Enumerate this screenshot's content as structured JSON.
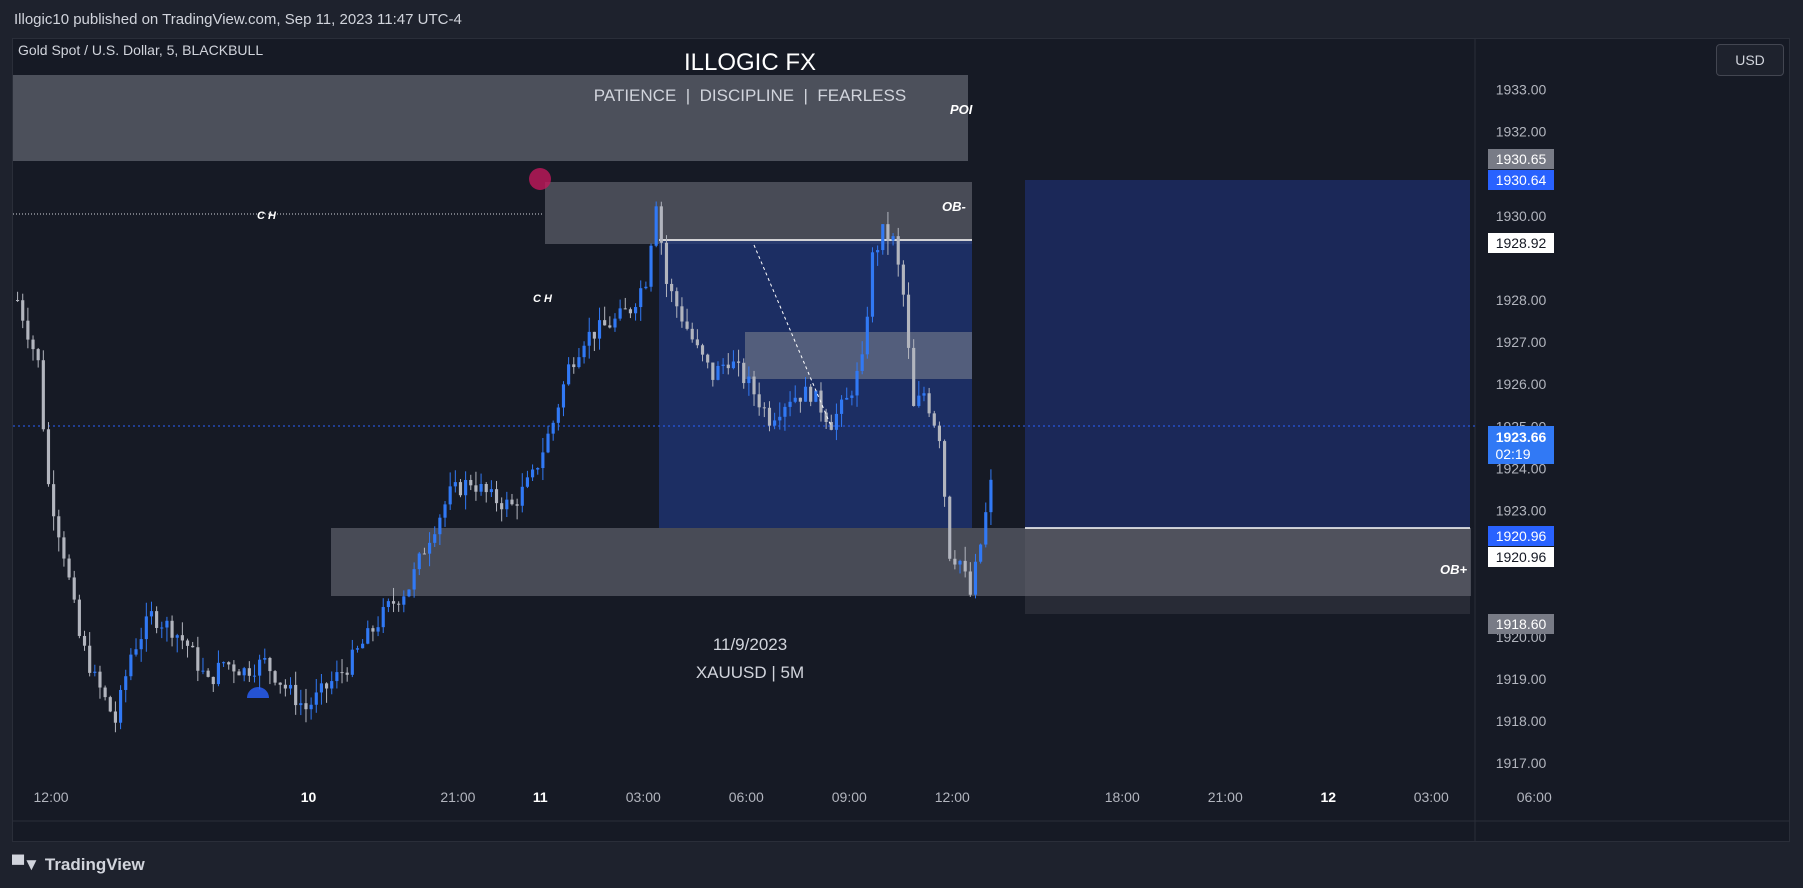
{
  "header": {
    "publish_line": "Illogic10 published on TradingView.com, Sep 11, 2023 11:47 UTC-4"
  },
  "footer": {
    "brand": "TradingView",
    "brand_icon": "tradingview-logo-icon"
  },
  "chart": {
    "symbol_line": "Gold Spot / U.S. Dollar, 5, BLACKBULL",
    "currency_button": "USD",
    "overlay_title": "ILLOGIC FX",
    "overlay_subtitle": "PATIENCE  |  DISCIPLINE  |  FEARLESS",
    "overlay_date": "11/9/2023",
    "overlay_pair": "XAUUSD | 5M",
    "labels": {
      "poi": "POI",
      "ob_minus": "OB-",
      "ob_plus": "OB+",
      "ch1": "C H",
      "ch2": "C H"
    },
    "price_badges": {
      "p1930_65": "1930.65",
      "p1930_64": "1930.64",
      "p1928_92": "1928.92",
      "p1923_66": "1923.66",
      "countdown": "02:19",
      "p1920_96_blue": "1920.96",
      "p1920_96_white": "1920.96",
      "p1918_60": "1918.60"
    },
    "colors": {
      "background": "#161a25",
      "up": "#3179f5",
      "down": "#b2b5be",
      "zone": "#5d606b",
      "long_zone": "#1f2d5c",
      "accent": "#2962ff"
    }
  },
  "chart_data": {
    "type": "candlestick",
    "symbol": "XAUUSD",
    "timeframe": "5M",
    "y_axis_ticks": [
      1917,
      1918,
      1919,
      1920,
      1921,
      1922,
      1923,
      1924,
      1925,
      1926,
      1927,
      1928,
      1929,
      1930,
      1931,
      1932,
      1933
    ],
    "y_axis_tick_labels": [
      "1917.00",
      "1918.00",
      "1919.00",
      "1920.00",
      "",
      "1922.00",
      "1923.00",
      "1924.00",
      "1925.00",
      "1926.00",
      "1927.00",
      "1928.00",
      "",
      "1930.00",
      "",
      "1932.00",
      "1933.00"
    ],
    "ylim": [
      1916.6,
      1934.2
    ],
    "x_axis_ticks": [
      "12:00",
      "10",
      "21:00",
      "11",
      "03:00",
      "06:00",
      "09:00",
      "12:00",
      "18:00",
      "21:00",
      "12",
      "03:00",
      "06:00"
    ],
    "x_tick_index": [
      7,
      57,
      86,
      102,
      122,
      142,
      162,
      182,
      215,
      235,
      255,
      275,
      295
    ],
    "last_price": 1923.66,
    "approx_close_path": [
      [
        0,
        1928.0
      ],
      [
        4,
        1926.5
      ],
      [
        6,
        1923.6
      ],
      [
        9,
        1922.0
      ],
      [
        12,
        1920.0
      ],
      [
        15,
        1919.0
      ],
      [
        19,
        1918.0
      ],
      [
        22,
        1919.6
      ],
      [
        26,
        1920.5
      ],
      [
        30,
        1920.2
      ],
      [
        33,
        1919.8
      ],
      [
        37,
        1918.9
      ],
      [
        40,
        1919.4
      ],
      [
        44,
        1919.2
      ],
      [
        48,
        1919.4
      ],
      [
        52,
        1918.8
      ],
      [
        56,
        1918.3
      ],
      [
        60,
        1918.8
      ],
      [
        64,
        1919.3
      ],
      [
        68,
        1920.0
      ],
      [
        72,
        1920.7
      ],
      [
        76,
        1921.2
      ],
      [
        80,
        1922.4
      ],
      [
        84,
        1923.4
      ],
      [
        88,
        1923.7
      ],
      [
        92,
        1923.3
      ],
      [
        96,
        1923.1
      ],
      [
        100,
        1923.8
      ],
      [
        104,
        1925.1
      ],
      [
        107,
        1926.4
      ],
      [
        110,
        1927.1
      ],
      [
        113,
        1927.3
      ],
      [
        116,
        1927.5
      ],
      [
        119,
        1927.8
      ],
      [
        122,
        1928.5
      ],
      [
        124,
        1930.4
      ],
      [
        126,
        1928.4
      ],
      [
        129,
        1927.6
      ],
      [
        132,
        1926.8
      ],
      [
        135,
        1926.2
      ],
      [
        138,
        1926.6
      ],
      [
        142,
        1926.0
      ],
      [
        146,
        1925.2
      ],
      [
        150,
        1925.7
      ],
      [
        154,
        1925.8
      ],
      [
        158,
        1925.1
      ],
      [
        161,
        1925.6
      ],
      [
        164,
        1926.5
      ],
      [
        166,
        1929.0
      ],
      [
        168,
        1929.6
      ],
      [
        170,
        1929.4
      ],
      [
        172,
        1928.1
      ],
      [
        174,
        1925.4
      ],
      [
        176,
        1925.8
      ],
      [
        179,
        1924.8
      ],
      [
        181,
        1922.0
      ],
      [
        183,
        1921.8
      ],
      [
        185,
        1921.0
      ],
      [
        187,
        1922.2
      ],
      [
        189,
        1923.6
      ]
    ],
    "annotations": [
      {
        "label": "POI",
        "type": "zone"
      },
      {
        "label": "OB-",
        "type": "zone"
      },
      {
        "label": "OB+",
        "type": "zone"
      },
      {
        "label": "C H",
        "type": "level"
      }
    ]
  }
}
